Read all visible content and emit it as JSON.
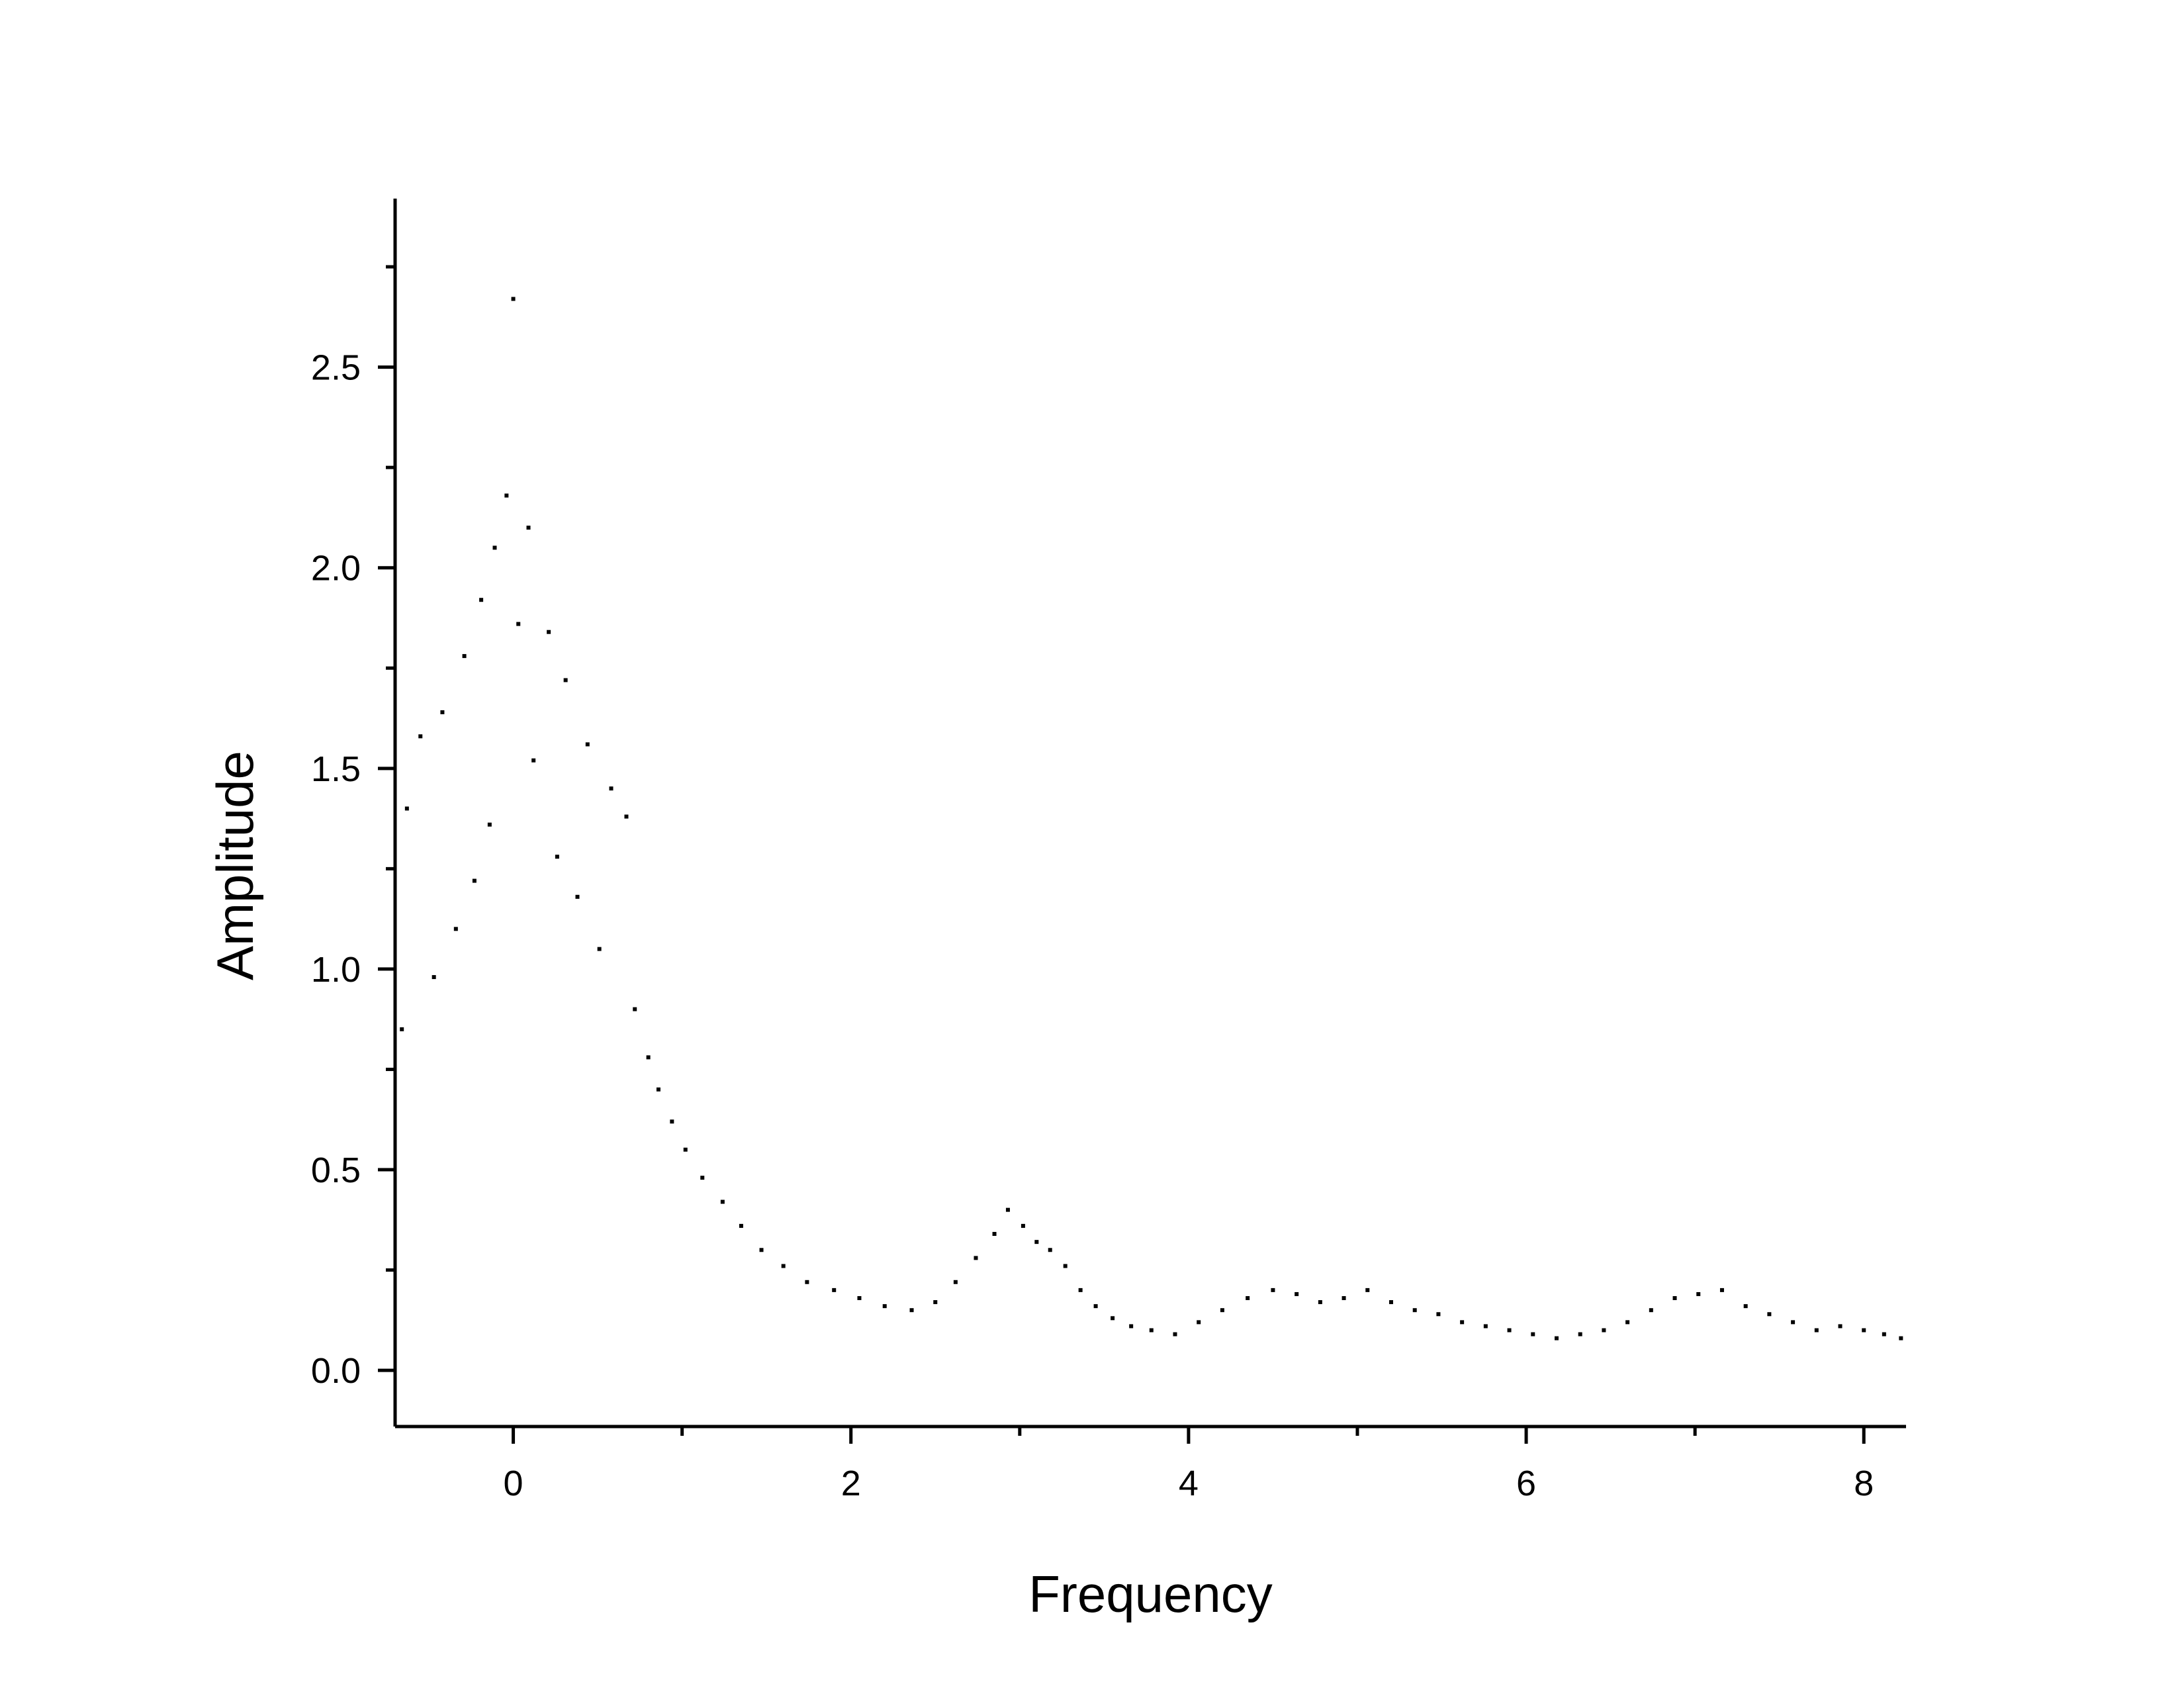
{
  "chart_data": {
    "type": "scatter",
    "title": "",
    "xlabel": "Frequency",
    "ylabel": "Amplitude",
    "xlim": [
      -0.7,
      8.25
    ],
    "ylim": [
      -0.14,
      2.92
    ],
    "x_ticks": [
      0,
      2,
      4,
      6,
      8
    ],
    "x_tick_labels": [
      "0",
      "2",
      "4",
      "6",
      "8"
    ],
    "x_minor_ticks": [
      1,
      3,
      5,
      7
    ],
    "y_ticks": [
      0.0,
      0.5,
      1.0,
      1.5,
      2.0,
      2.5
    ],
    "y_tick_labels": [
      "0.0",
      "0.5",
      "1.0",
      "1.5",
      "2.0",
      "2.5"
    ],
    "y_minor_ticks": [
      0.25,
      0.75,
      1.25,
      1.75,
      2.25,
      2.75
    ],
    "grid": false,
    "legend": "none",
    "marker_color": "#000000",
    "series": [
      {
        "x": [
          0.0,
          -0.04,
          0.09,
          -0.11,
          0.03,
          -0.19,
          0.21,
          -0.29,
          0.31,
          -0.42,
          0.44,
          -0.55,
          0.58,
          -0.63,
          0.67,
          0.12,
          -0.14,
          0.26,
          -0.23,
          0.38,
          -0.34,
          0.51,
          -0.47,
          0.72,
          -0.66,
          0.8,
          0.86,
          0.94,
          1.02,
          1.12,
          1.24,
          1.35,
          1.47,
          1.6,
          1.74,
          1.9,
          2.05,
          2.2,
          2.36,
          2.5,
          2.62,
          2.74,
          2.85,
          2.93,
          3.02,
          3.1,
          3.18,
          3.27,
          3.36,
          3.45,
          3.55,
          3.66,
          3.78,
          3.92,
          4.06,
          4.2,
          4.35,
          4.5,
          4.64,
          4.78,
          4.92,
          5.06,
          5.2,
          5.34,
          5.48,
          5.62,
          5.76,
          5.9,
          6.04,
          6.18,
          6.32,
          6.46,
          6.6,
          6.74,
          6.88,
          7.02,
          7.16,
          7.3,
          7.44,
          7.58,
          7.72,
          7.86,
          8.0,
          8.12,
          8.22
        ],
        "y": [
          2.67,
          2.18,
          2.1,
          2.05,
          1.86,
          1.92,
          1.84,
          1.78,
          1.72,
          1.64,
          1.56,
          1.58,
          1.45,
          1.4,
          1.38,
          1.52,
          1.36,
          1.28,
          1.22,
          1.18,
          1.1,
          1.05,
          0.98,
          0.9,
          0.85,
          0.78,
          0.7,
          0.62,
          0.55,
          0.48,
          0.42,
          0.36,
          0.3,
          0.26,
          0.22,
          0.2,
          0.18,
          0.16,
          0.15,
          0.17,
          0.22,
          0.28,
          0.34,
          0.4,
          0.36,
          0.32,
          0.3,
          0.26,
          0.2,
          0.16,
          0.13,
          0.11,
          0.1,
          0.09,
          0.12,
          0.15,
          0.18,
          0.2,
          0.19,
          0.17,
          0.18,
          0.2,
          0.17,
          0.15,
          0.14,
          0.12,
          0.11,
          0.1,
          0.09,
          0.08,
          0.09,
          0.1,
          0.12,
          0.15,
          0.18,
          0.19,
          0.2,
          0.16,
          0.14,
          0.12,
          0.1,
          0.11,
          0.1,
          0.09,
          0.08
        ]
      }
    ]
  }
}
